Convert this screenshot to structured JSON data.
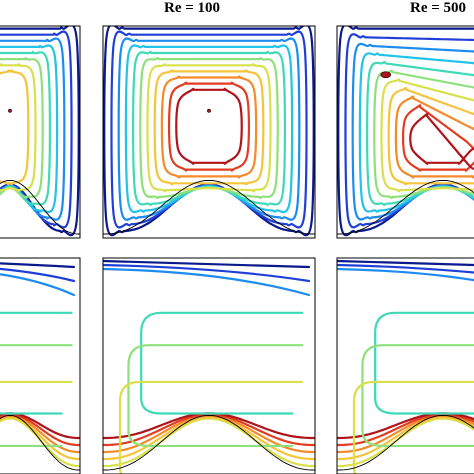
{
  "figure": {
    "column_labels": [
      "Re = 100",
      "Re = 500"
    ],
    "rows": [
      {
        "row": "top",
        "panels": [
          "left-partial",
          "re-100",
          "re-500-partial"
        ]
      },
      {
        "row": "bottom",
        "panels": [
          "left-partial",
          "re-100",
          "re-500-partial"
        ]
      }
    ],
    "contour_colors": [
      "#0a1a8c",
      "#1f3fd6",
      "#1c8cf0",
      "#22c3e8",
      "#3fd9b8",
      "#8fe07a",
      "#d9e04a",
      "#f5c43a",
      "#f58a2a",
      "#e23c22",
      "#b0141a"
    ],
    "wavy_bottom": {
      "bumps_per_panel": 2
    }
  }
}
